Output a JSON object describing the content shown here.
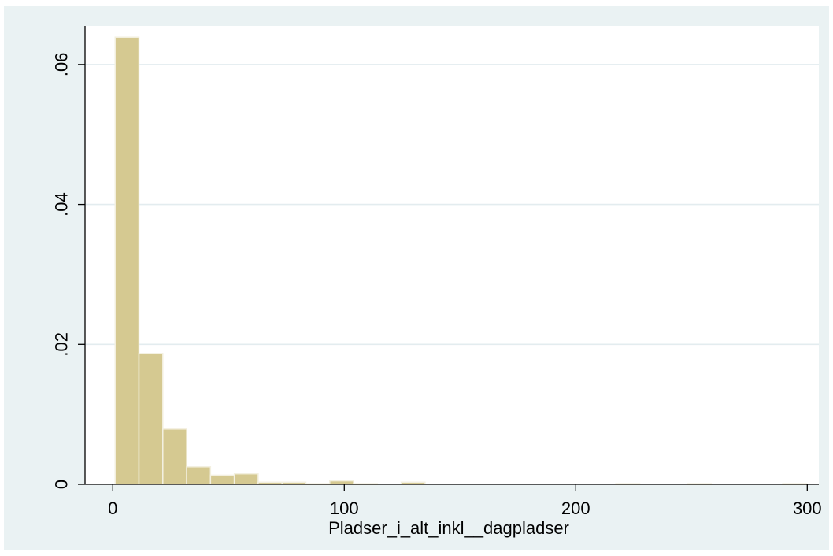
{
  "colors": {
    "outer_background": "#eaf2f3",
    "plot_background": "#ffffff",
    "bar_fill": "#d5c991",
    "bar_stroke": "#f3f0e0",
    "gridline": "#e3ecef",
    "axis": "#000000"
  },
  "chart_data": {
    "type": "bar",
    "subtype": "histogram",
    "title": "",
    "xlabel": "Pladser_i_alt_inkl__dagpladser",
    "ylabel": "",
    "xlim": [
      -12,
      305
    ],
    "ylim": [
      0,
      0.0655
    ],
    "grid": true,
    "x_ticks": [
      {
        "value": 0,
        "label": "0"
      },
      {
        "value": 100,
        "label": "100"
      },
      {
        "value": 200,
        "label": "200"
      },
      {
        "value": 300,
        "label": "300"
      }
    ],
    "y_ticks": [
      {
        "value": 0,
        "label": "0"
      },
      {
        "value": 0.02,
        "label": ".02"
      },
      {
        "value": 0.04,
        "label": ".04"
      },
      {
        "value": 0.06,
        "label": ".06"
      }
    ],
    "bins": [
      {
        "x0": 1,
        "x1": 11.3,
        "density": 0.0639
      },
      {
        "x0": 11.3,
        "x1": 21.6,
        "density": 0.0187
      },
      {
        "x0": 21.6,
        "x1": 31.9,
        "density": 0.0079
      },
      {
        "x0": 31.9,
        "x1": 42.2,
        "density": 0.0025
      },
      {
        "x0": 42.2,
        "x1": 52.5,
        "density": 0.0013
      },
      {
        "x0": 52.5,
        "x1": 62.8,
        "density": 0.0015
      },
      {
        "x0": 62.8,
        "x1": 73.1,
        "density": 0.0003
      },
      {
        "x0": 73.1,
        "x1": 83.4,
        "density": 0.0003
      },
      {
        "x0": 83.4,
        "x1": 93.7,
        "density": 0.0001
      },
      {
        "x0": 93.7,
        "x1": 104.0,
        "density": 0.0005
      },
      {
        "x0": 104.0,
        "x1": 114.3,
        "density": 0.0001
      },
      {
        "x0": 114.3,
        "x1": 124.6,
        "density": 0
      },
      {
        "x0": 124.6,
        "x1": 134.9,
        "density": 0.0003
      },
      {
        "x0": 134.9,
        "x1": 145.2,
        "density": 0
      },
      {
        "x0": 145.2,
        "x1": 155.5,
        "density": 0
      },
      {
        "x0": 155.5,
        "x1": 165.8,
        "density": 0
      },
      {
        "x0": 165.8,
        "x1": 176.1,
        "density": 0
      },
      {
        "x0": 176.1,
        "x1": 186.4,
        "density": 0
      },
      {
        "x0": 186.4,
        "x1": 196.7,
        "density": 0
      },
      {
        "x0": 196.7,
        "x1": 207.0,
        "density": 0
      },
      {
        "x0": 207.0,
        "x1": 217.3,
        "density": 0
      },
      {
        "x0": 217.3,
        "x1": 227.6,
        "density": 0.0001
      },
      {
        "x0": 227.6,
        "x1": 237.9,
        "density": 0
      },
      {
        "x0": 237.9,
        "x1": 248.2,
        "density": 0
      },
      {
        "x0": 248.2,
        "x1": 258.5,
        "density": 0.0001
      },
      {
        "x0": 258.5,
        "x1": 268.8,
        "density": 0
      },
      {
        "x0": 268.8,
        "x1": 279.1,
        "density": 0
      },
      {
        "x0": 279.1,
        "x1": 289.4,
        "density": 0
      },
      {
        "x0": 289.4,
        "x1": 299.7,
        "density": 0.0001
      }
    ]
  }
}
